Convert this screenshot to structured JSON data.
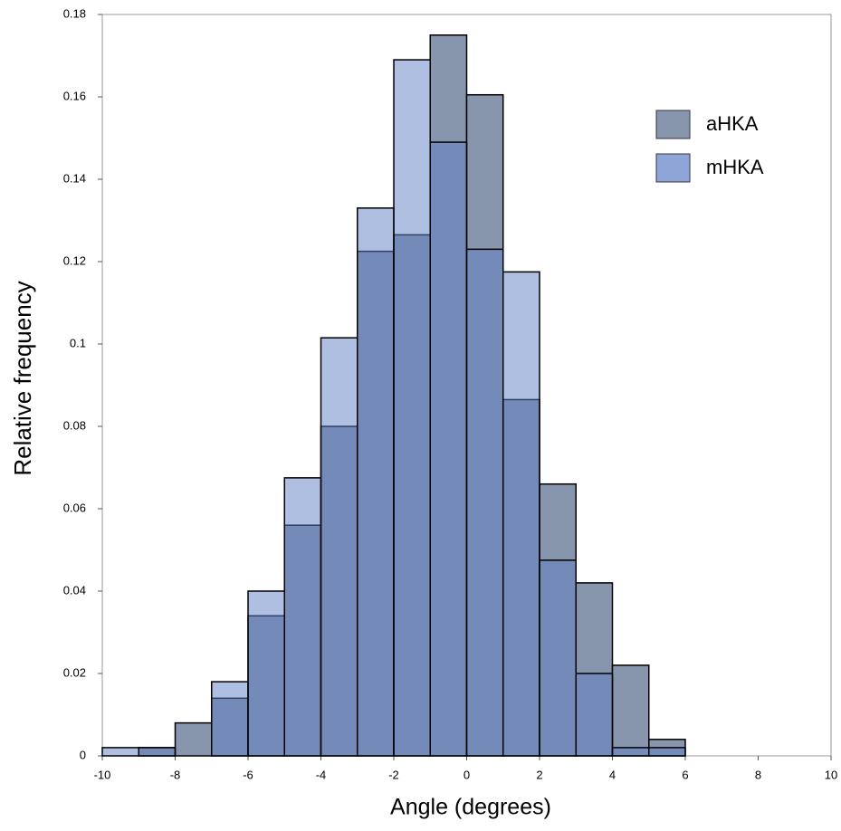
{
  "chart_data": {
    "type": "histogram",
    "xlabel": "Angle (degrees)",
    "ylabel": "Relative frequency",
    "bins": [
      -10,
      -9,
      -8,
      -7,
      -6,
      -5,
      -4,
      -3,
      -2,
      -1,
      0,
      1,
      2,
      3,
      4,
      5,
      6,
      7,
      8,
      9,
      10
    ],
    "series": [
      {
        "name": "aHKA",
        "color": "#8896ad",
        "values": [
          0,
          0.002,
          0.008,
          0.014,
          0.034,
          0.056,
          0.08,
          0.1225,
          0.1265,
          0.175,
          0.1605,
          0.0865,
          0.066,
          0.042,
          0.022,
          0.004,
          0,
          0,
          0,
          0
        ]
      },
      {
        "name": "mHKA",
        "color": "#5f7fc6",
        "values": [
          0.002,
          0.002,
          0,
          0.018,
          0.04,
          0.0675,
          0.1015,
          0.133,
          0.169,
          0.149,
          0.123,
          0.1175,
          0.0475,
          0.02,
          0.002,
          0.002,
          0,
          0,
          0,
          0
        ]
      }
    ],
    "xlim": [
      -10,
      10
    ],
    "xticks": [
      -10,
      -8,
      -6,
      -4,
      -2,
      0,
      2,
      4,
      6,
      8,
      10
    ],
    "ylim": [
      0,
      0.18
    ],
    "yticks": [
      0,
      0.02,
      0.04,
      0.06,
      0.08,
      0.1,
      0.12,
      0.14,
      0.16,
      0.18
    ],
    "legend": "upper right"
  }
}
